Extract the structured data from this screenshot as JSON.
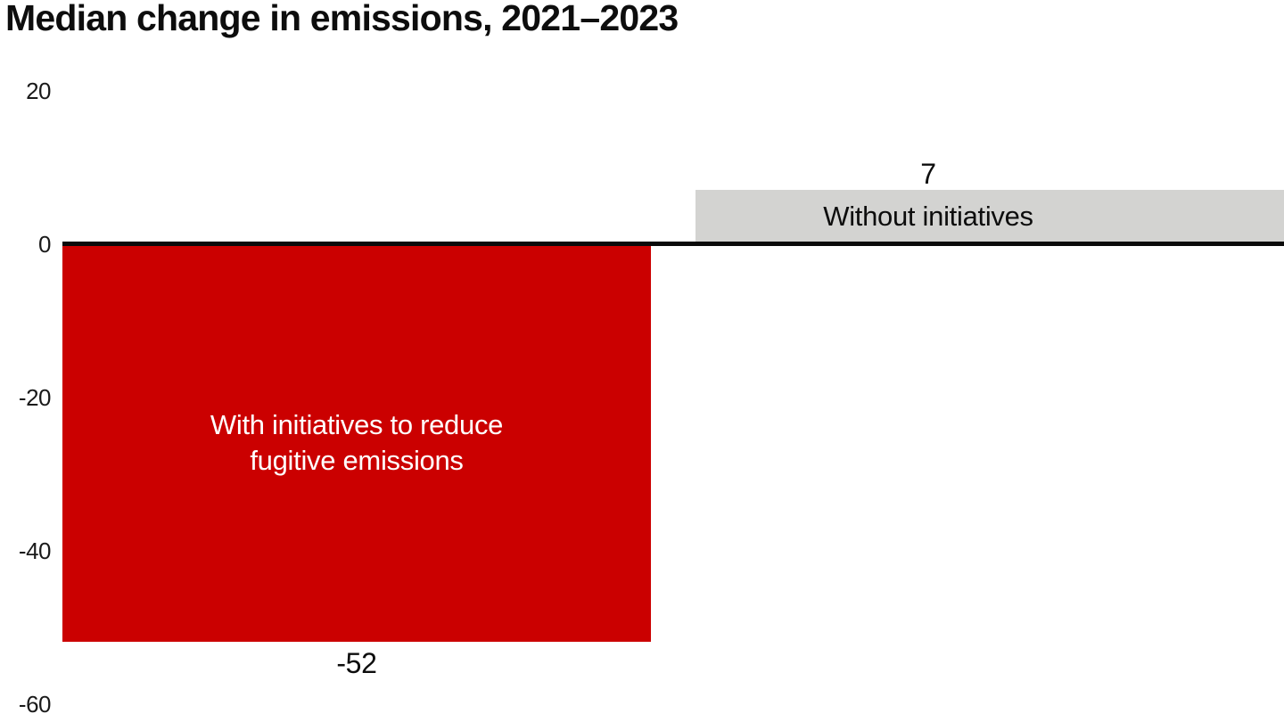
{
  "chart_data": {
    "type": "bar",
    "title": "Median change in emissions, 2021–2023",
    "xlabel": "",
    "ylabel": "",
    "categories": [
      "With initiatives to reduce fugitive emissions",
      "Without initiatives"
    ],
    "values": [
      -52,
      7
    ],
    "value_labels": [
      "-52",
      "7"
    ],
    "ylim": [
      -60,
      20
    ],
    "yticks": [
      20,
      0,
      -20,
      -40,
      -60
    ],
    "ytick_labels": [
      "20",
      "0",
      "-20",
      "-40",
      "-60"
    ],
    "grid": false,
    "legend": "none",
    "orientation": "vertical",
    "colors": {
      "negative_bar": "#cb0000",
      "positive_bar": "#d3d3d1",
      "axis_line": "#0a0a0a",
      "title_text": "#0d0d0d",
      "tick_text": "#1a1a1a",
      "negative_bar_text": "#ffffff",
      "positive_bar_text": "#0d0d0d"
    },
    "bars": [
      {
        "name": "with-initiatives",
        "category": "With initiatives to reduce fugitive emissions",
        "label_lines": [
          "With initiatives to reduce",
          "fugitive emissions"
        ],
        "value": -52,
        "value_label": "-52",
        "label_position": "inside",
        "value_label_position": "below"
      },
      {
        "name": "without-initiatives",
        "category": "Without initiatives",
        "label_lines": [
          "Without initiatives"
        ],
        "value": 7,
        "value_label": "7",
        "label_position": "inside",
        "value_label_position": "above"
      }
    ]
  }
}
